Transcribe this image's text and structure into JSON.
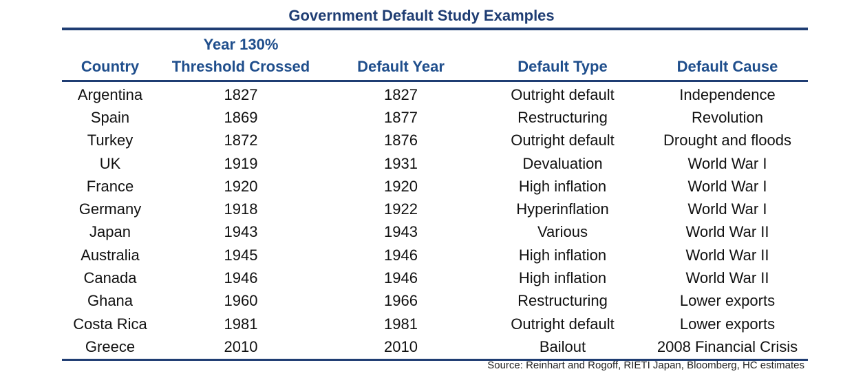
{
  "chart_data": {
    "type": "table",
    "title": "Government Default Study Examples",
    "columns": [
      "Country",
      "Year 130% Threshold Crossed",
      "Default Year",
      "Default Type",
      "Default Cause"
    ],
    "header_split": {
      "threshold_line1": "Year 130%",
      "threshold_line2": "Threshold Crossed"
    },
    "rows": [
      [
        "Argentina",
        "1827",
        "1827",
        "Outright default",
        "Independence"
      ],
      [
        "Spain",
        "1869",
        "1877",
        "Restructuring",
        "Revolution"
      ],
      [
        "Turkey",
        "1872",
        "1876",
        "Outright default",
        "Drought and floods"
      ],
      [
        "UK",
        "1919",
        "1931",
        "Devaluation",
        "World War I"
      ],
      [
        "France",
        "1920",
        "1920",
        "High inflation",
        "World War I"
      ],
      [
        "Germany",
        "1918",
        "1922",
        "Hyperinflation",
        "World War I"
      ],
      [
        "Japan",
        "1943",
        "1943",
        "Various",
        "World War II"
      ],
      [
        "Australia",
        "1945",
        "1946",
        "High inflation",
        "World War II"
      ],
      [
        "Canada",
        "1946",
        "1946",
        "High inflation",
        "World War II"
      ],
      [
        "Ghana",
        "1960",
        "1966",
        "Restructuring",
        "Lower exports"
      ],
      [
        "Costa Rica",
        "1981",
        "1981",
        "Outright default",
        "Lower exports"
      ],
      [
        "Greece",
        "2010",
        "2010",
        "Bailout",
        "2008 Financial Crisis"
      ]
    ],
    "source": "Source: Reinhart and Rogoff,  RIETI Japan, Bloomberg, HC estimates"
  },
  "colors": {
    "title": "#1f3d73",
    "header": "#1f4e8c",
    "rule": "#1f3d73",
    "text": "#111111"
  }
}
